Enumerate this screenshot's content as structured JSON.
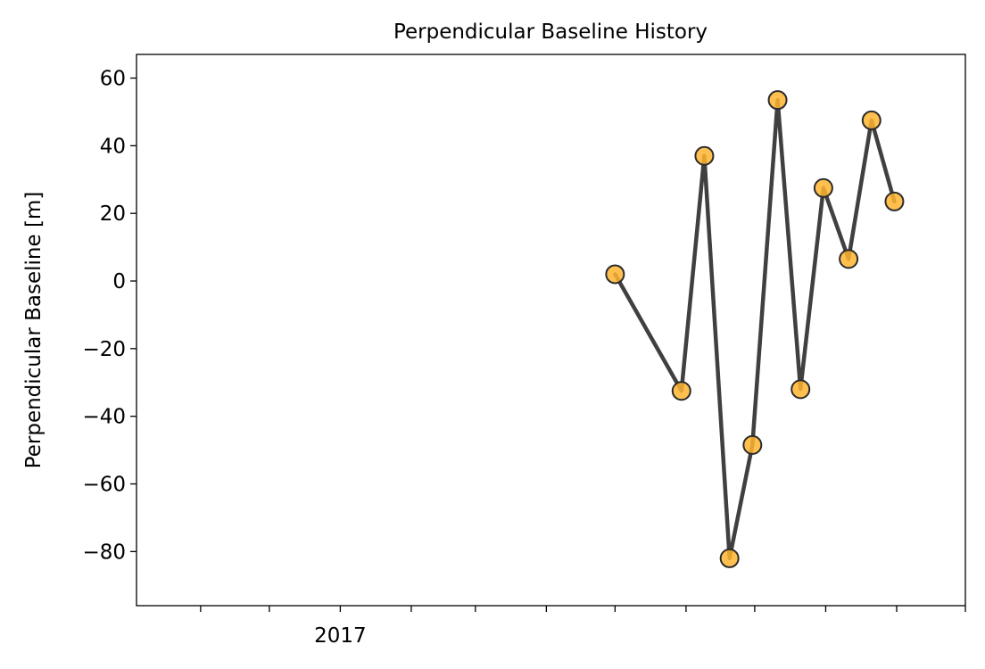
{
  "chart_data": {
    "type": "line",
    "title": "Perpendicular Baseline History",
    "xlabel": "",
    "ylabel": "Perpendicular Baseline [m]",
    "x": [
      "2017-05-01",
      "2017-05-30",
      "2017-06-09",
      "2017-06-20",
      "2017-06-30",
      "2017-07-11",
      "2017-07-21",
      "2017-07-31",
      "2017-08-11",
      "2017-08-21",
      "2017-08-31"
    ],
    "series": [
      {
        "values": [
          2,
          -32.5,
          37,
          -82,
          -48.5,
          53.5,
          -32,
          27.5,
          6.5,
          47.5,
          23.5
        ]
      }
    ],
    "ylim": [
      -96,
      67
    ],
    "yticks": [
      -80,
      -60,
      -40,
      -20,
      0,
      20,
      40,
      60
    ],
    "ytick_labels": [
      "−80",
      "−60",
      "−40",
      "−20",
      "0",
      "20",
      "40",
      "60"
    ],
    "xlim": [
      "2016-10-04",
      "2017-10-01"
    ],
    "xticks": [
      "2016-10-01",
      "2016-11-01",
      "2016-12-01",
      "2017-01-01",
      "2017-02-01",
      "2017-03-01",
      "2017-04-01",
      "2017-05-01",
      "2017-06-01",
      "2017-07-01",
      "2017-08-01",
      "2017-09-01",
      "2017-10-01"
    ],
    "xtick_labels": [
      "",
      "",
      "",
      "2017",
      "",
      "",
      "",
      "",
      "",
      "",
      "",
      "",
      ""
    ],
    "colors": {
      "line": "#404040",
      "marker_fill": "#ffb530",
      "marker_edge": "#2b2b2b"
    },
    "grid": false,
    "legend": "none"
  }
}
